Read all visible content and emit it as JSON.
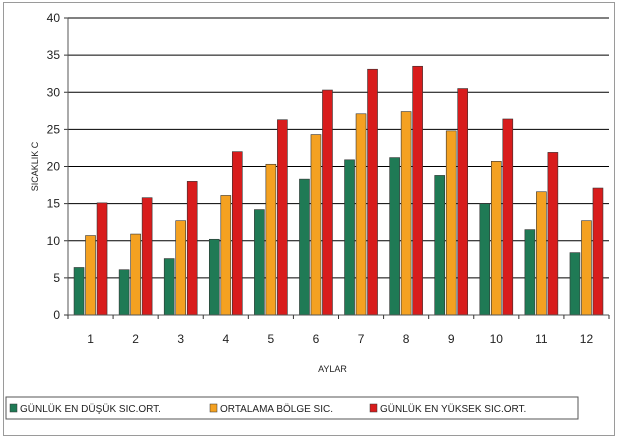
{
  "chart_data": {
    "type": "bar",
    "categories": [
      "1",
      "2",
      "3",
      "4",
      "5",
      "6",
      "7",
      "8",
      "9",
      "10",
      "11",
      "12"
    ],
    "series": [
      {
        "name": "GÜNLÜK EN DÜŞÜK SIC.ORT.",
        "color": "#1f7a55",
        "values": [
          6.4,
          6.1,
          7.6,
          10.2,
          14.2,
          18.3,
          20.9,
          21.2,
          18.8,
          15.0,
          11.5,
          8.4
        ]
      },
      {
        "name": "ORTALAMA BÖLGE SIC.",
        "color": "#f4a121",
        "values": [
          10.7,
          10.9,
          12.7,
          16.1,
          20.3,
          24.3,
          27.1,
          27.4,
          24.8,
          20.7,
          16.6,
          12.7
        ]
      },
      {
        "name": "GÜNLÜK EN YÜKSEK SIC.ORT.",
        "color": "#d81c1c",
        "values": [
          15.1,
          15.8,
          18.0,
          22.0,
          26.3,
          30.3,
          33.1,
          33.5,
          30.5,
          26.4,
          21.9,
          17.1
        ]
      }
    ],
    "xlabel": "AYLAR",
    "ylabel": "SICAKLIK C",
    "ylim": [
      0,
      40
    ],
    "yticks": [
      "0",
      "5",
      "10",
      "15",
      "20",
      "25",
      "30",
      "35",
      "40"
    ],
    "grid": true,
    "legend_position": "bottom-left"
  }
}
